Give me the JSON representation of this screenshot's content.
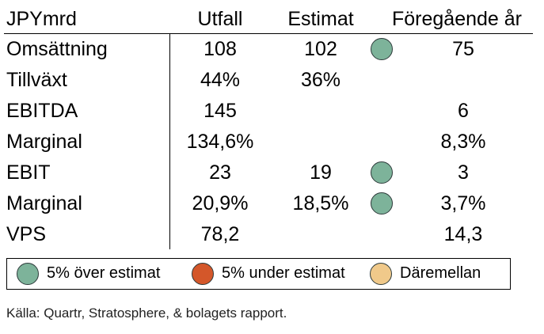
{
  "header": {
    "label": "JPYmrd",
    "utfall": "Utfall",
    "estimat": "Estimat",
    "foregaende": "Föregående år"
  },
  "rows": [
    {
      "label": "Omsättning",
      "utfall": "108",
      "estimat": "102",
      "status": "green",
      "prev": "75"
    },
    {
      "label": "Tillväxt",
      "utfall": "44%",
      "estimat": "36%",
      "status": "",
      "prev": ""
    },
    {
      "label": "EBITDA",
      "utfall": "145",
      "estimat": "",
      "status": "",
      "prev": "6"
    },
    {
      "label": "Marginal",
      "utfall": "134,6%",
      "estimat": "",
      "status": "",
      "prev": "8,3%"
    },
    {
      "label": "EBIT",
      "utfall": "23",
      "estimat": "19",
      "status": "green",
      "prev": "3"
    },
    {
      "label": "Marginal",
      "utfall": "20,9%",
      "estimat": "18,5%",
      "status": "green",
      "prev": "3,7%"
    },
    {
      "label": "VPS",
      "utfall": "78,2",
      "estimat": "",
      "status": "",
      "prev": "14,3"
    }
  ],
  "colors": {
    "green": "#7db39a",
    "red": "#d4572a",
    "yellow": "#f0c98a"
  },
  "legend": [
    {
      "label": "5% över estimat",
      "color": "#7db39a"
    },
    {
      "label": "5% under estimat",
      "color": "#d4572a"
    },
    {
      "label": "Däremellan",
      "color": "#f0c98a"
    }
  ],
  "source": "Källa: Quartr, Stratosphere, & bolagets rapport."
}
